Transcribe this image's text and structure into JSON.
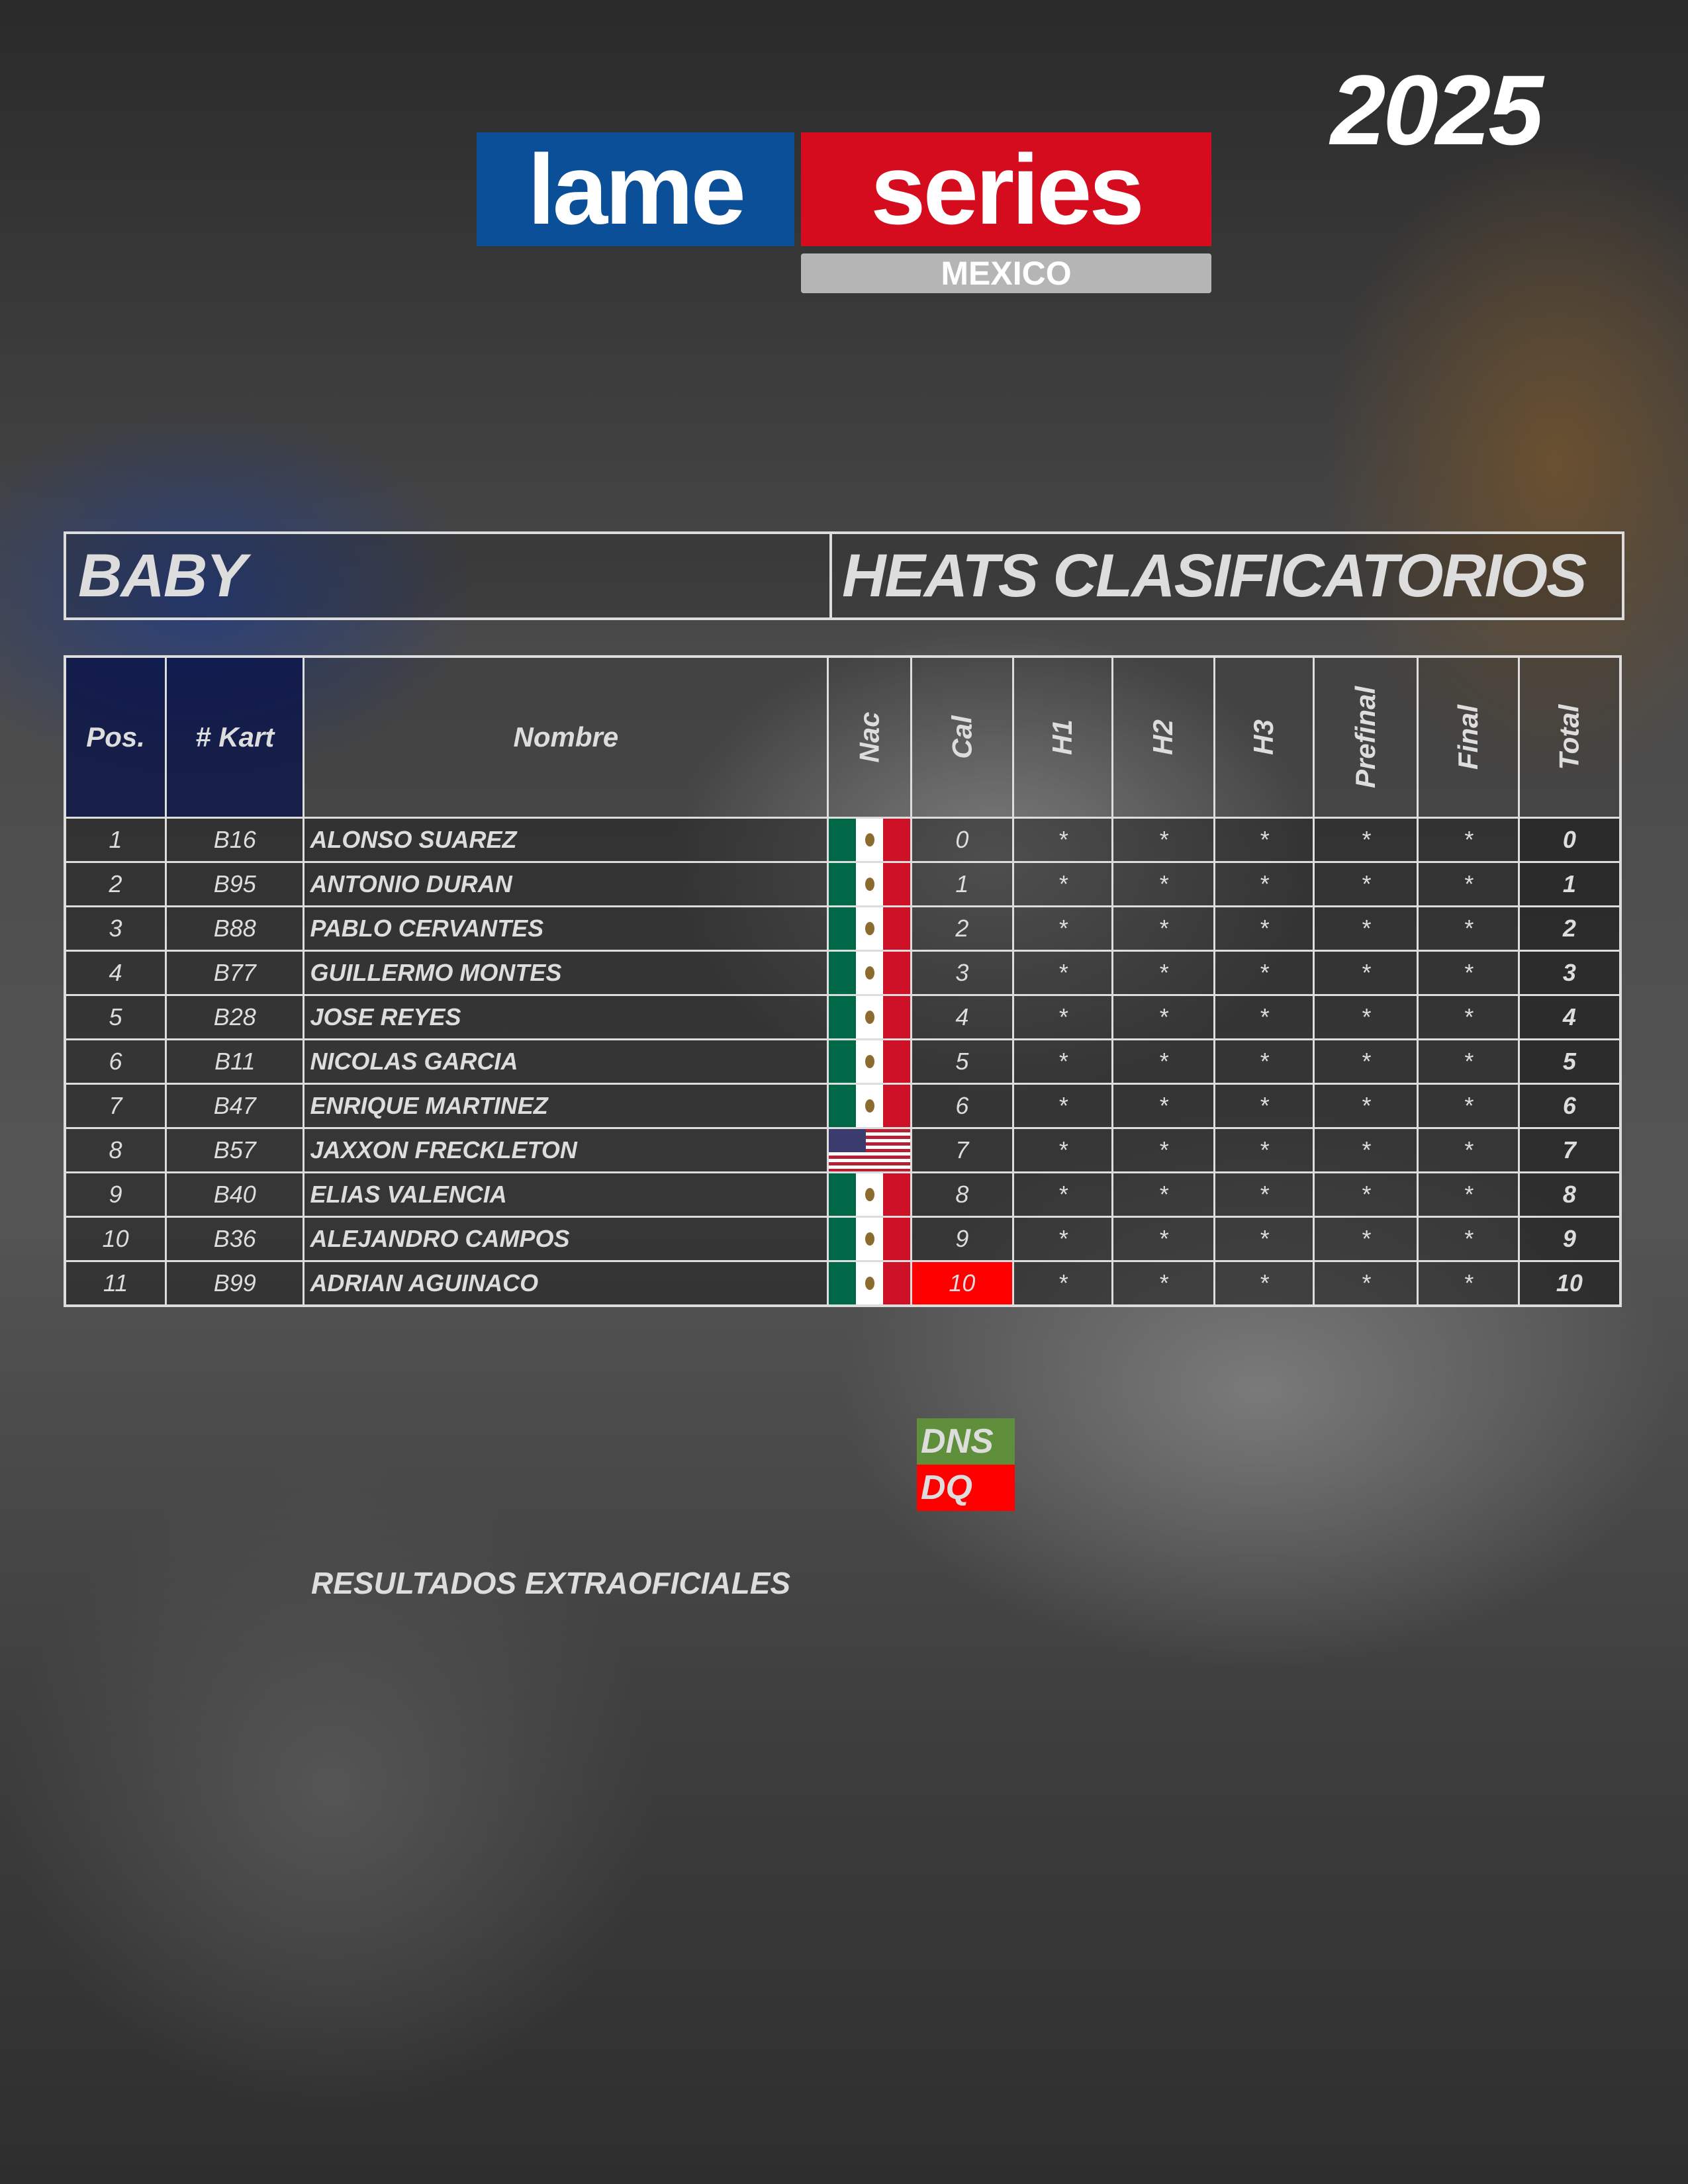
{
  "logo": {
    "left": "lame",
    "right": "series",
    "sub": "MEXICO",
    "colors": {
      "blue": "#0a4f98",
      "red": "#d50b1e",
      "grey": "#b5b5b5"
    }
  },
  "year": "2025",
  "category": "BABY",
  "session": "HEATS CLASIFICATORIOS",
  "columns": [
    "Pos.",
    "# Kart",
    "Nombre",
    "Nac",
    "Cal",
    "H1",
    "H2",
    "H3",
    "Prefinal",
    "Final",
    "Total"
  ],
  "rows": [
    {
      "pos": "1",
      "kart": "B16",
      "name": "ALONSO SUAREZ",
      "nac": "mexico-flag",
      "cal": "0",
      "h1": "*",
      "h2": "*",
      "h3": "*",
      "prefinal": "*",
      "final": "*",
      "total": "0"
    },
    {
      "pos": "2",
      "kart": "B95",
      "name": "ANTONIO DURAN",
      "nac": "mexico-flag",
      "cal": "1",
      "h1": "*",
      "h2": "*",
      "h3": "*",
      "prefinal": "*",
      "final": "*",
      "total": "1"
    },
    {
      "pos": "3",
      "kart": "B88",
      "name": "PABLO CERVANTES",
      "nac": "mexico-flag",
      "cal": "2",
      "h1": "*",
      "h2": "*",
      "h3": "*",
      "prefinal": "*",
      "final": "*",
      "total": "2"
    },
    {
      "pos": "4",
      "kart": "B77",
      "name": "GUILLERMO MONTES",
      "nac": "mexico-flag",
      "cal": "3",
      "h1": "*",
      "h2": "*",
      "h3": "*",
      "prefinal": "*",
      "final": "*",
      "total": "3"
    },
    {
      "pos": "5",
      "kart": "B28",
      "name": "JOSE REYES",
      "nac": "mexico-flag",
      "cal": "4",
      "h1": "*",
      "h2": "*",
      "h3": "*",
      "prefinal": "*",
      "final": "*",
      "total": "4"
    },
    {
      "pos": "6",
      "kart": "B11",
      "name": "NICOLAS GARCIA",
      "nac": "mexico-flag",
      "cal": "5",
      "h1": "*",
      "h2": "*",
      "h3": "*",
      "prefinal": "*",
      "final": "*",
      "total": "5"
    },
    {
      "pos": "7",
      "kart": "B47",
      "name": "ENRIQUE MARTINEZ",
      "nac": "mexico-flag",
      "cal": "6",
      "h1": "*",
      "h2": "*",
      "h3": "*",
      "prefinal": "*",
      "final": "*",
      "total": "6"
    },
    {
      "pos": "8",
      "kart": "B57",
      "name": "JAXXON FRECKLETON",
      "nac": "usa-flag",
      "cal": "7",
      "h1": "*",
      "h2": "*",
      "h3": "*",
      "prefinal": "*",
      "final": "*",
      "total": "7"
    },
    {
      "pos": "9",
      "kart": "B40",
      "name": "ELIAS VALENCIA",
      "nac": "mexico-flag",
      "cal": "8",
      "h1": "*",
      "h2": "*",
      "h3": "*",
      "prefinal": "*",
      "final": "*",
      "total": "8"
    },
    {
      "pos": "10",
      "kart": "B36",
      "name": "ALEJANDRO CAMPOS",
      "nac": "mexico-flag",
      "cal": "9",
      "h1": "*",
      "h2": "*",
      "h3": "*",
      "prefinal": "*",
      "final": "*",
      "total": "9"
    },
    {
      "pos": "11",
      "kart": "B99",
      "name": "ADRIAN AGUINACO",
      "nac": "mexico-flag",
      "cal": "10",
      "cal_status": "DQ",
      "h1": "*",
      "h2": "*",
      "h3": "*",
      "prefinal": "*",
      "final": "*",
      "total": "10"
    }
  ],
  "legend": [
    {
      "label": "DNS",
      "color": "#5f8f3a"
    },
    {
      "label": "DQ",
      "color": "#ff0000"
    }
  ],
  "footer": "RESULTADOS EXTRAOFICIALES"
}
